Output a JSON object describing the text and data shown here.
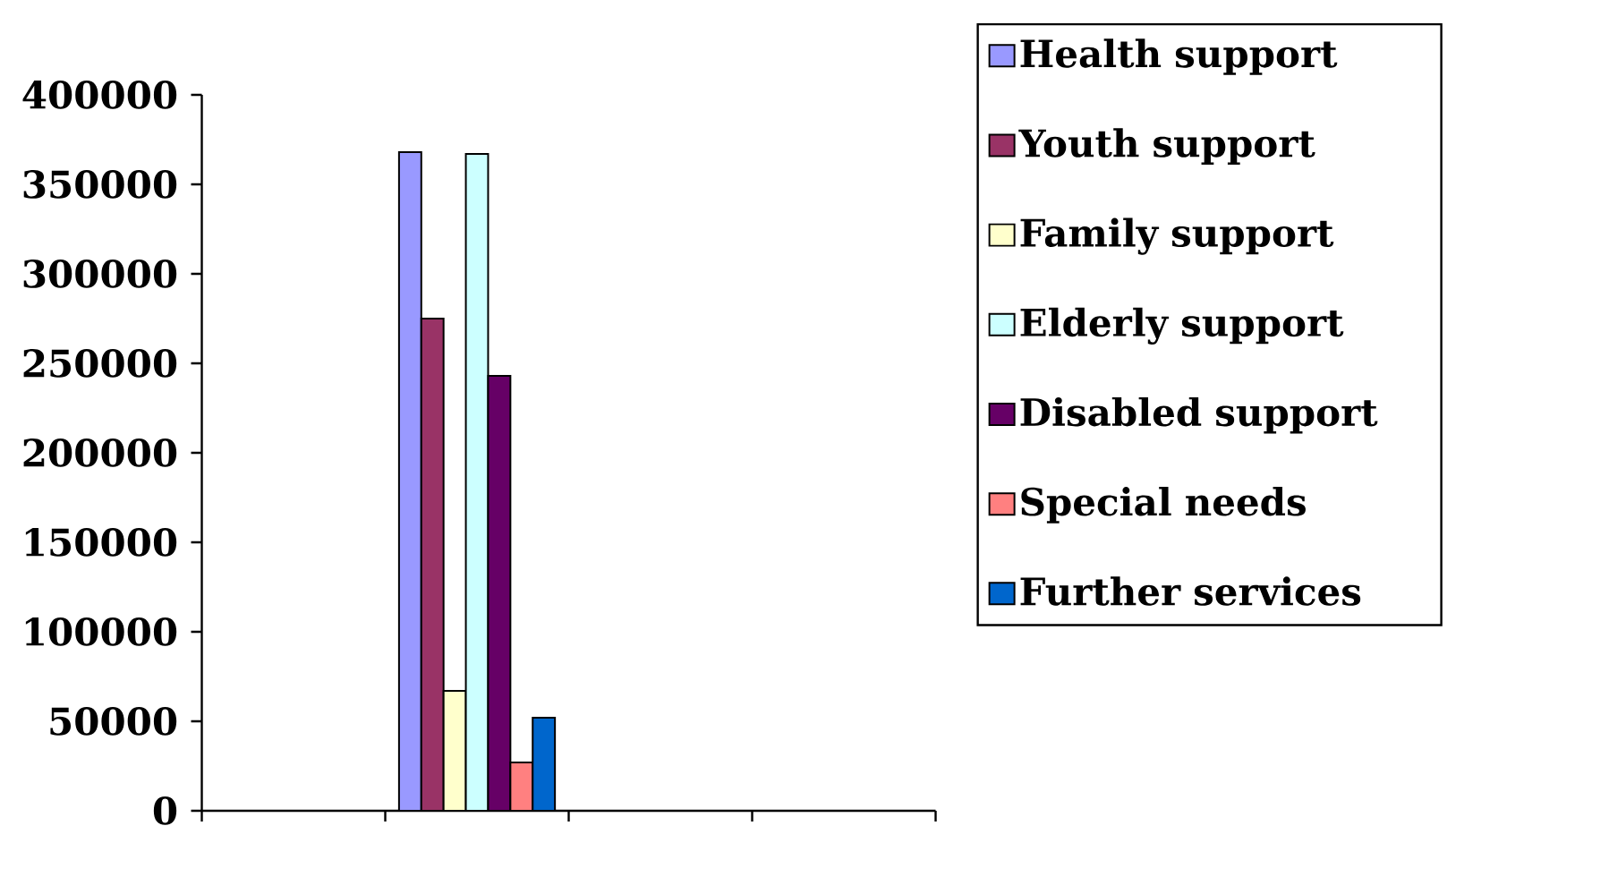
{
  "chart_data": {
    "type": "bar",
    "categories": [
      null,
      null,
      null,
      null
    ],
    "series": [
      {
        "name": "Health support",
        "color": "#9999ff",
        "values": [
          null,
          368000,
          null,
          null
        ]
      },
      {
        "name": "Youth support",
        "color": "#993366",
        "values": [
          null,
          275000,
          null,
          null
        ]
      },
      {
        "name": "Family support",
        "color": "#ffffcc",
        "values": [
          null,
          67000,
          null,
          null
        ]
      },
      {
        "name": "Elderly support",
        "color": "#ccffff",
        "values": [
          null,
          367000,
          null,
          null
        ]
      },
      {
        "name": "Disabled support",
        "color": "#660066",
        "values": [
          null,
          243000,
          null,
          null
        ]
      },
      {
        "name": "Special needs",
        "color": "#ff8080",
        "values": [
          null,
          27000,
          null,
          null
        ]
      },
      {
        "name": "Further services",
        "color": "#0066cc",
        "values": [
          null,
          52000,
          null,
          null
        ]
      }
    ],
    "ylim": [
      0,
      400000
    ],
    "yticks": [
      0,
      50000,
      100000,
      150000,
      200000,
      250000,
      300000,
      350000,
      400000
    ],
    "legend": "right",
    "grid": false
  }
}
